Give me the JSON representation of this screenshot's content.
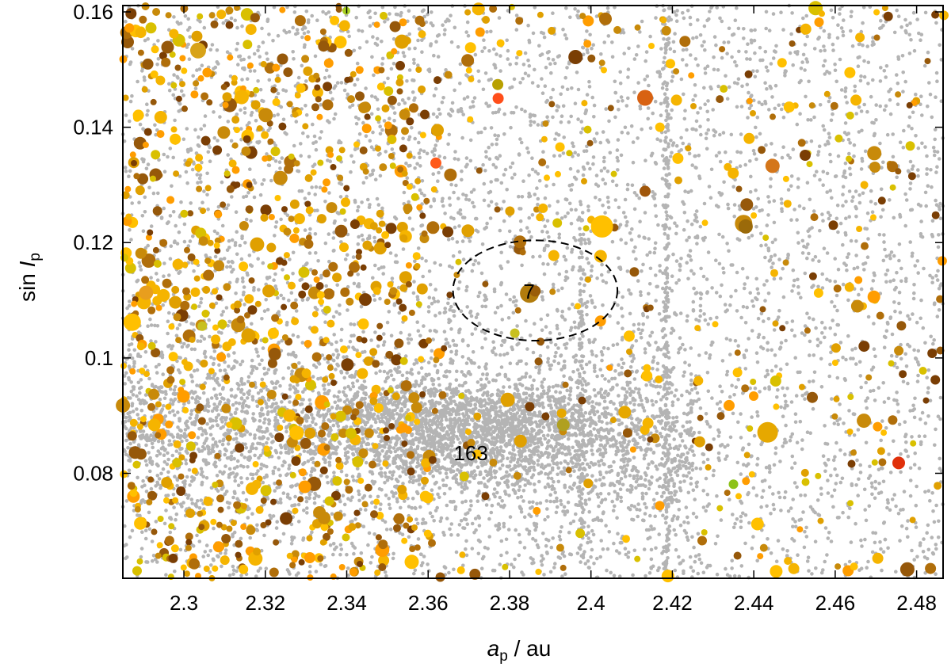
{
  "chart_data": {
    "type": "scatter",
    "xlabel": {
      "var": "a",
      "sub": "p",
      "rest": " / au"
    },
    "ylabel": {
      "pre": "sin ",
      "var": "I",
      "sub": "p"
    },
    "xlim": [
      2.285,
      2.4865
    ],
    "ylim": [
      0.0618,
      0.1611
    ],
    "x_ticks": [
      2.3,
      2.32,
      2.34,
      2.36,
      2.38,
      2.4,
      2.42,
      2.44,
      2.46,
      2.48
    ],
    "x_tick_labels": [
      "2.3",
      "2.32",
      "2.34",
      "2.36",
      "2.38",
      "2.4",
      "2.42",
      "2.44",
      "2.46",
      "2.48"
    ],
    "y_ticks": [
      0.08,
      0.1,
      0.12,
      0.14,
      0.16
    ],
    "y_tick_labels": [
      "0.08",
      "0.1",
      "0.12",
      "0.14",
      "0.16"
    ],
    "grid": false,
    "legend": "none",
    "background_points_color": "#b4b4b4",
    "family_palette": [
      "#ffc000",
      "#f5b400",
      "#e0a000",
      "#c88a0a",
      "#b06e0a",
      "#96580a",
      "#7a3e04",
      "#ff9d00",
      "#d9c000"
    ],
    "annotations": [
      {
        "text": "7",
        "x": 2.3848,
        "y": 0.1112
      },
      {
        "text": "163",
        "x": 2.3705,
        "y": 0.0832
      }
    ],
    "ellipse": {
      "cx": 2.3863,
      "cy": 0.1117,
      "rx": 0.0202,
      "ry": 0.0087,
      "style": "dashed"
    },
    "series": [
      {
        "role": "background",
        "color": "#b4b4b4",
        "points": [
          [
            2.3,
            0.09
          ],
          [
            2.32,
            0.12
          ],
          [
            2.34,
            0.1
          ],
          [
            2.36,
            0.085
          ],
          [
            2.38,
            0.088
          ],
          [
            2.4,
            0.13
          ],
          [
            2.42,
            0.07
          ],
          [
            2.44,
            0.15
          ],
          [
            2.46,
            0.11
          ],
          [
            2.48,
            0.095
          ]
        ]
      },
      {
        "role": "highlighted",
        "points": [
          {
            "x": 2.3849,
            "y": 0.1112,
            "c": "#b27c0c",
            "s": 12
          },
          {
            "x": 2.3863,
            "y": 0.1116,
            "c": "#9a5d08",
            "s": 7
          },
          {
            "x": 2.4027,
            "y": 0.1228,
            "c": "#ffc000",
            "s": 14
          },
          {
            "x": 2.4434,
            "y": 0.0871,
            "c": "#e6a800",
            "s": 13
          },
          {
            "x": 2.4375,
            "y": 0.1233,
            "c": "#c88a0a",
            "s": 11
          },
          {
            "x": 2.438,
            "y": 0.1228,
            "c": "#9b6a0a",
            "s": 9
          },
          {
            "x": 2.4133,
            "y": 0.1451,
            "c": "#d86212",
            "s": 10
          },
          {
            "x": 2.4446,
            "y": 0.1333,
            "c": "#d4761a",
            "s": 9
          },
          {
            "x": 2.3035,
            "y": 0.1533,
            "c": "#d8a318",
            "s": 10
          },
          {
            "x": 2.2873,
            "y": 0.1062,
            "c": "#ffc000",
            "s": 11
          },
          {
            "x": 2.2907,
            "y": 0.1113,
            "c": "#e89e1e",
            "s": 9
          },
          {
            "x": 2.3619,
            "y": 0.1338,
            "c": "#ff5a1a",
            "s": 7
          },
          {
            "x": 2.3772,
            "y": 0.145,
            "c": "#ff4e1a",
            "s": 7
          },
          {
            "x": 2.3771,
            "y": 0.1474,
            "c": "#b8a000",
            "s": 7
          },
          {
            "x": 2.4756,
            "y": 0.0818,
            "c": "#e0300a",
            "s": 8
          },
          {
            "x": 2.435,
            "y": 0.0781,
            "c": "#8dc21a",
            "s": 6
          },
          {
            "x": 2.3932,
            "y": 0.0884,
            "c": "#b0a020",
            "s": 8
          },
          {
            "x": 2.3813,
            "y": 0.1043,
            "c": "#c8c020",
            "s": 6
          },
          {
            "x": 2.3399,
            "y": 0.1602,
            "c": "#a8d020",
            "s": 5
          },
          {
            "x": 2.3045,
            "y": 0.1055,
            "c": "#c8c020",
            "s": 6
          },
          {
            "x": 2.4696,
            "y": 0.1355,
            "c": "#c88a0a",
            "s": 9
          },
          {
            "x": 2.4695,
            "y": 0.1106,
            "c": "#ff9d00",
            "s": 8
          },
          {
            "x": 2.4133,
            "y": 0.1289,
            "c": "#a0560a",
            "s": 7
          },
          {
            "x": 2.3697,
            "y": 0.1516,
            "c": "#b06e0a",
            "s": 8
          },
          {
            "x": 2.3704,
            "y": 0.1538,
            "c": "#ffc000",
            "s": 7
          },
          {
            "x": 2.3928,
            "y": 0.0904,
            "c": "#e6a800",
            "s": 6
          },
          {
            "x": 2.4083,
            "y": 0.0906,
            "c": "#e6a800",
            "s": 8
          },
          {
            "x": 2.4189,
            "y": 0.0622,
            "c": "#ffc000",
            "s": 8
          },
          {
            "x": 2.3277,
            "y": 0.087,
            "c": "#ffc000",
            "s": 9
          },
          {
            "x": 2.3333,
            "y": 0.0732,
            "c": "#c88a0a",
            "s": 8
          },
          {
            "x": 2.3611,
            "y": 0.0823,
            "c": "#7a3e04",
            "s": 5
          },
          {
            "x": 2.4867,
            "y": 0.1594,
            "c": "#f5b400",
            "s": 6
          },
          {
            "x": 2.4487,
            "y": 0.1435,
            "c": "#ffc000",
            "s": 7
          },
          {
            "x": 2.4651,
            "y": 0.1447,
            "c": "#f5b400",
            "s": 7
          },
          {
            "x": 2.4455,
            "y": 0.063,
            "c": "#ffc000",
            "s": 8
          },
          {
            "x": 2.4834,
            "y": 0.0635,
            "c": "#b06e0a",
            "s": 7
          },
          {
            "x": 2.473,
            "y": 0.1592,
            "c": "#7a3e04",
            "s": 6
          },
          {
            "x": 2.337,
            "y": 0.1585,
            "c": "#ffc000",
            "s": 6
          },
          {
            "x": 2.3175,
            "y": 0.159,
            "c": "#96580a",
            "s": 6
          },
          {
            "x": 2.287,
            "y": 0.1597,
            "c": "#7a3e04",
            "s": 7
          },
          {
            "x": 2.363,
            "y": 0.062,
            "c": "#96580a",
            "s": 6
          },
          {
            "x": 2.3715,
            "y": 0.0625,
            "c": "#96580a",
            "s": 7
          }
        ]
      }
    ]
  }
}
